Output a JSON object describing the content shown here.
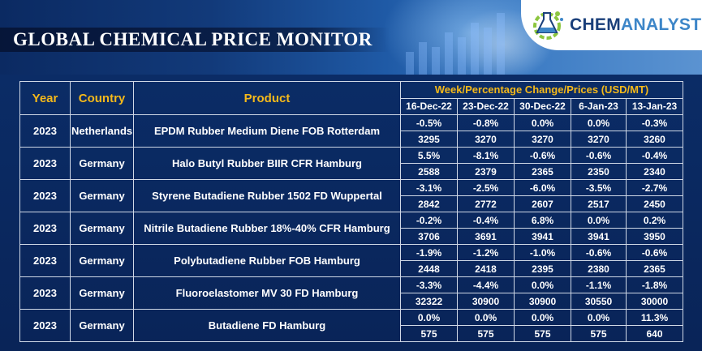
{
  "header": {
    "title": "GLOBAL CHEMICAL PRICE MONITOR",
    "logo_part1": "CHEM",
    "logo_part2": "ANALYST"
  },
  "colors": {
    "accent_header": "#f5b91a",
    "table_bg": "#0b2c66",
    "text": "#ffffff",
    "logo_dark": "#1a3f7a",
    "logo_light": "#3d86c8",
    "logo_green": "#8cc63f"
  },
  "table": {
    "col_year": "Year",
    "col_country": "Country",
    "col_product": "Product",
    "week_header": "Week/Percentage Change/Prices (USD/MT)",
    "dates": [
      "16-Dec-22",
      "23-Dec-22",
      "30-Dec-22",
      "6-Jan-23",
      "13-Jan-23"
    ],
    "rows": [
      {
        "year": "2023",
        "country": "Netherlands",
        "product": "EPDM Rubber Medium Diene FOB Rotterdam",
        "changes": [
          "-0.5%",
          "-0.8%",
          "0.0%",
          "0.0%",
          "-0.3%"
        ],
        "prices": [
          "3295",
          "3270",
          "3270",
          "3270",
          "3260"
        ]
      },
      {
        "year": "2023",
        "country": "Germany",
        "product": "Halo Butyl Rubber BIIR CFR Hamburg",
        "changes": [
          "5.5%",
          "-8.1%",
          "-0.6%",
          "-0.6%",
          "-0.4%"
        ],
        "prices": [
          "2588",
          "2379",
          "2365",
          "2350",
          "2340"
        ]
      },
      {
        "year": "2023",
        "country": "Germany",
        "product": "Styrene Butadiene Rubber 1502 FD Wuppertal",
        "changes": [
          "-3.1%",
          "-2.5%",
          "-6.0%",
          "-3.5%",
          "-2.7%"
        ],
        "prices": [
          "2842",
          "2772",
          "2607",
          "2517",
          "2450"
        ]
      },
      {
        "year": "2023",
        "country": "Germany",
        "product": "Nitrile Butadiene Rubber 18%-40% CFR Hamburg",
        "changes": [
          "-0.2%",
          "-0.4%",
          "6.8%",
          "0.0%",
          "0.2%"
        ],
        "prices": [
          "3706",
          "3691",
          "3941",
          "3941",
          "3950"
        ]
      },
      {
        "year": "2023",
        "country": "Germany",
        "product": "Polybutadiene Rubber FOB Hamburg",
        "changes": [
          "-1.9%",
          "-1.2%",
          "-1.0%",
          "-0.6%",
          "-0.6%"
        ],
        "prices": [
          "2448",
          "2418",
          "2395",
          "2380",
          "2365"
        ]
      },
      {
        "year": "2023",
        "country": "Germany",
        "product": "Fluoroelastomer MV 30 FD Hamburg",
        "changes": [
          "-3.3%",
          "-4.4%",
          "0.0%",
          "-1.1%",
          "-1.8%"
        ],
        "prices": [
          "32322",
          "30900",
          "30900",
          "30550",
          "30000"
        ]
      },
      {
        "year": "2023",
        "country": "Germany",
        "product": "Butadiene FD Hamburg",
        "changes": [
          "0.0%",
          "0.0%",
          "0.0%",
          "0.0%",
          "11.3%"
        ],
        "prices": [
          "575",
          "575",
          "575",
          "575",
          "640"
        ]
      }
    ]
  }
}
